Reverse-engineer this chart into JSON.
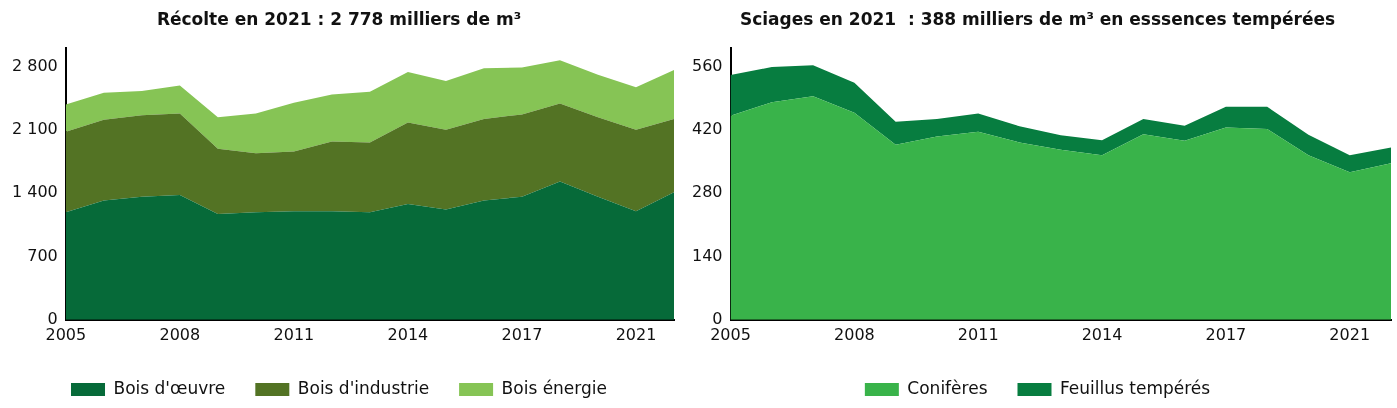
{
  "chart_data": [
    {
      "type": "area",
      "title": "Récolte en 2021 : 2 778 milliers de m³",
      "stacked": true,
      "legend": "bottom",
      "grid": false,
      "categories": [
        "2005",
        null,
        null,
        "2008",
        null,
        null,
        "2011",
        null,
        null,
        "2014",
        null,
        null,
        "2017",
        null,
        null,
        "2021",
        null
      ],
      "ylim": [
        0,
        3000
      ],
      "yticks": [
        0,
        700,
        {
          "value": 1400,
          "label": "1 400"
        },
        {
          "value": 2100,
          "label": "2 100"
        },
        {
          "value": 2800,
          "label": "2 800"
        }
      ],
      "series": [
        {
          "name": "Bois d'œuvre",
          "color": "#066a39",
          "values": [
            1190,
            1320,
            1360,
            1380,
            1170,
            1190,
            1200,
            1200,
            1190,
            1280,
            1220,
            1320,
            1360,
            1530,
            1360,
            1200,
            1410
          ]
        },
        {
          "name": "Bois d'industrie",
          "color": "#537324",
          "values": [
            890,
            890,
            900,
            900,
            720,
            650,
            660,
            770,
            770,
            900,
            880,
            900,
            910,
            860,
            880,
            900,
            810
          ]
        },
        {
          "name": "Bois énergie",
          "color": "#86c455",
          "values": [
            300,
            300,
            270,
            310,
            350,
            440,
            540,
            520,
            560,
            560,
            540,
            560,
            520,
            480,
            470,
            470,
            540
          ]
        }
      ]
    },
    {
      "type": "area",
      "title": "Sciages en 2021  : 388 milliers de m³ en esssences tempérées",
      "stacked": true,
      "legend": "bottom",
      "grid": false,
      "categories": [
        "2005",
        null,
        null,
        "2008",
        null,
        null,
        "2011",
        null,
        null,
        "2014",
        null,
        null,
        "2017",
        null,
        null,
        "2021",
        null
      ],
      "ylim": [
        0,
        600
      ],
      "yticks": [
        0,
        140,
        280,
        420,
        560
      ],
      "series": [
        {
          "name": "Conifères",
          "color": "#39b34a",
          "values": [
            451,
            481,
            494,
            458,
            387,
            405,
            416,
            392,
            376,
            364,
            410,
            396,
            425,
            422,
            364,
            326,
            346
          ]
        },
        {
          "name": "Feuillus tempérés",
          "color": "#077d40",
          "values": [
            90,
            78,
            69,
            66,
            51,
            39,
            40,
            36,
            32,
            33,
            34,
            33,
            46,
            49,
            45,
            38,
            35
          ]
        }
      ]
    }
  ]
}
